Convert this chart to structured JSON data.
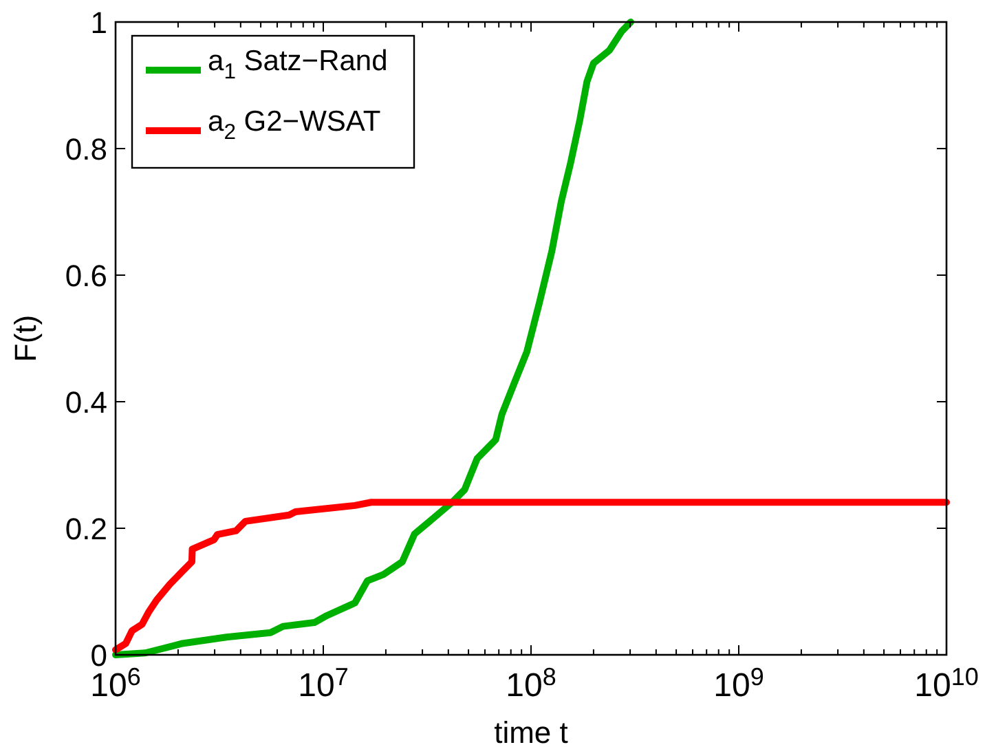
{
  "chart_data": {
    "type": "line",
    "xlabel": "time t",
    "ylabel": "F(t)",
    "log": "x",
    "grid": false,
    "legend": "top left",
    "line_style": "solid",
    "marker": "none",
    "xlim": [
      1000000.0,
      10000000000.0
    ],
    "ylim": [
      0,
      1
    ],
    "xticks": [
      {
        "value": 1000000.0,
        "label": "10$^{6}$"
      },
      {
        "value": 2000000.0,
        "label": null
      },
      {
        "value": 3000000.0,
        "label": null
      },
      {
        "value": 4000000.0,
        "label": null
      },
      {
        "value": 5000000.0,
        "label": null
      },
      {
        "value": 6000000.0,
        "label": null
      },
      {
        "value": 7000000.0,
        "label": null
      },
      {
        "value": 8000000.0,
        "label": null
      },
      {
        "value": 9000000.0,
        "label": null
      },
      {
        "value": 10000000.0,
        "label": "10$^{7}$"
      },
      {
        "value": 20000000.0,
        "label": null
      },
      {
        "value": 30000000.0,
        "label": null
      },
      {
        "value": 40000000.0,
        "label": null
      },
      {
        "value": 50000000.0,
        "label": null
      },
      {
        "value": 60000000.0,
        "label": null
      },
      {
        "value": 70000000.0,
        "label": null
      },
      {
        "value": 80000000.0,
        "label": null
      },
      {
        "value": 90000000.0,
        "label": null
      },
      {
        "value": 100000000.0,
        "label": "10$^{8}$"
      },
      {
        "value": 200000000.0,
        "label": null
      },
      {
        "value": 300000000.0,
        "label": null
      },
      {
        "value": 400000000.0,
        "label": null
      },
      {
        "value": 500000000.0,
        "label": null
      },
      {
        "value": 600000000.0,
        "label": null
      },
      {
        "value": 700000000.0,
        "label": null
      },
      {
        "value": 800000000.0,
        "label": null
      },
      {
        "value": 900000000.0,
        "label": null
      },
      {
        "value": 1000000000.0,
        "label": "10$^{9}$"
      },
      {
        "value": 2000000000.0,
        "label": null
      },
      {
        "value": 3000000000.0,
        "label": null
      },
      {
        "value": 4000000000.0,
        "label": null
      },
      {
        "value": 5000000000.0,
        "label": null
      },
      {
        "value": 6000000000.0,
        "label": null
      },
      {
        "value": 7000000000.0,
        "label": null
      },
      {
        "value": 8000000000.0,
        "label": null
      },
      {
        "value": 9000000000.0,
        "label": null
      },
      {
        "value": 10000000000.0,
        "label": "10$^{10}$"
      }
    ],
    "yticks": [
      0,
      0.2,
      0.4,
      0.6,
      0.8,
      1
    ],
    "series": [
      {
        "name": "a$_{1}$ Satz−Rand",
        "color": "#00b000",
        "x": [
          1000000.0,
          1390000.0,
          2100000.0,
          3420000.0,
          5570000.0,
          6400000.0,
          9060000.0,
          10400000.0,
          14200000.0,
          16300000.0,
          19500000.0,
          24000000.0,
          27500000.0,
          33900000.0,
          41700000.0,
          47900000.0,
          55000000.0,
          67600000.0,
          72400000.0,
          83200000.0,
          95500000.0,
          110000000.0,
          126000000.0,
          140000000.0,
          155000000.0,
          172000000.0,
          186000000.0,
          200000000.0,
          238000000.0,
          273000000.0,
          302000000.0
        ],
        "values": [
          0,
          0.003,
          0.018,
          0.028,
          0.035,
          0.045,
          0.051,
          0.062,
          0.082,
          0.117,
          0.127,
          0.147,
          0.191,
          0.216,
          0.241,
          0.261,
          0.31,
          0.34,
          0.38,
          0.43,
          0.479,
          0.558,
          0.638,
          0.717,
          0.777,
          0.846,
          0.906,
          0.935,
          0.955,
          0.985,
          1
        ]
      },
      {
        "name": "a$_{2}$ G2−WSAT",
        "color": "#ff0000",
        "x": [
          1000000.0,
          1120000.0,
          1200000.0,
          1340000.0,
          1440000.0,
          1580000.0,
          1830000.0,
          2100000.0,
          2330000.0,
          2340000.0,
          2980000.0,
          3090000.0,
          3800000.0,
          4220000.0,
          6850000.0,
          7350000.0,
          14200000.0,
          17000000.0,
          10000000000.0
        ],
        "values": [
          0.008,
          0.018,
          0.038,
          0.048,
          0.067,
          0.087,
          0.112,
          0.132,
          0.147,
          0.167,
          0.182,
          0.19,
          0.196,
          0.211,
          0.221,
          0.226,
          0.236,
          0.241,
          0.241
        ]
      }
    ]
  }
}
